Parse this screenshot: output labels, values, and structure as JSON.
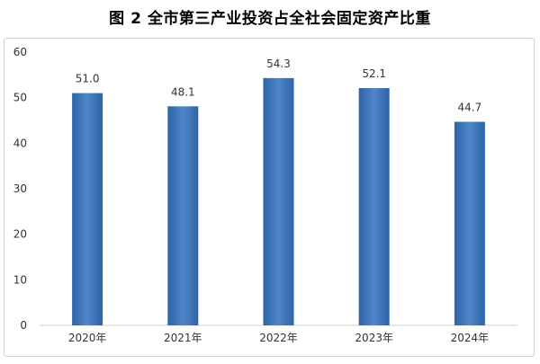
{
  "chart_data": {
    "type": "bar",
    "title": "图 2  全市第三产业投资占全社会固定资产比重",
    "categories": [
      "2020年",
      "2021年",
      "2022年",
      "2023年",
      "2024年"
    ],
    "values": [
      51.0,
      48.1,
      54.3,
      52.1,
      44.7
    ],
    "data_labels": [
      "51.0",
      "48.1",
      "54.3",
      "52.1",
      "44.7"
    ],
    "y_ticks": [
      "0",
      "10",
      "20",
      "30",
      "40",
      "50",
      "60"
    ],
    "ylim": [
      0,
      60
    ],
    "grid": false,
    "bar_color": "#2e64a8",
    "bar_highlight": "#4f86c6"
  }
}
